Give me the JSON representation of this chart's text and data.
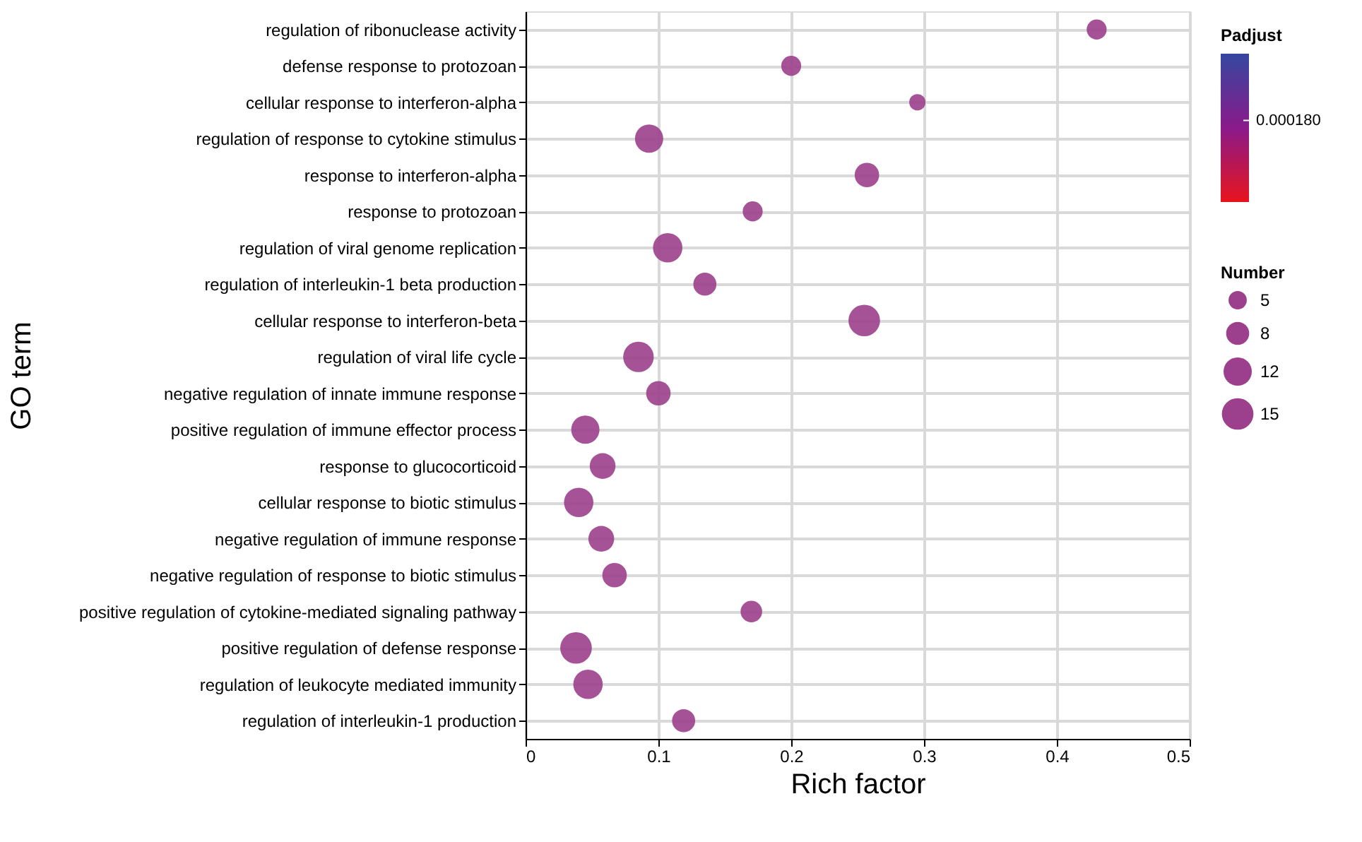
{
  "chart_data": {
    "type": "bubble",
    "categories": [
      "regulation of ribonuclease activity",
      "defense response to protozoan",
      "cellular response to interferon-alpha",
      "regulation of response to cytokine stimulus",
      "response to interferon-alpha",
      "response to protozoan",
      "regulation of viral genome replication",
      "regulation of interleukin-1 beta production",
      "cellular response to interferon-beta",
      "regulation of viral life cycle",
      "negative regulation of innate immune response",
      "positive regulation of immune effector process",
      "response to glucocorticoid",
      "cellular response to biotic stimulus",
      "negative regulation of immune response",
      "negative regulation of response to biotic stimulus",
      "positive regulation of cytokine-mediated signaling pathway",
      "positive regulation of defense response",
      "regulation of leukocyte mediated immunity",
      "regulation of interleukin-1 production"
    ],
    "values": [
      0.43,
      0.2,
      0.295,
      0.093,
      0.257,
      0.171,
      0.107,
      0.135,
      0.255,
      0.085,
      0.1,
      0.045,
      0.058,
      0.04,
      0.057,
      0.067,
      0.17,
      0.038,
      0.047,
      0.119
    ],
    "sizes": [
      6,
      6,
      4,
      12,
      9,
      6,
      13,
      8,
      15,
      14,
      9,
      12,
      10,
      13,
      10,
      9,
      7,
      15,
      13,
      8
    ],
    "size_legend": [
      5,
      8,
      12,
      15
    ],
    "color": "#9c3f8c",
    "orientation": "horizontal",
    "clabel": "Padjust",
    "legend_title": "Number",
    "annotations": [
      "0.000180"
    ],
    "xlim": [
      0,
      0.5
    ],
    "xticks": [
      {
        "value": 0,
        "label": "0"
      },
      0.1,
      0.2,
      0.3,
      0.4,
      0.5
    ],
    "xlabel": "Rich factor",
    "ylabel": "GO term",
    "grid": true
  }
}
